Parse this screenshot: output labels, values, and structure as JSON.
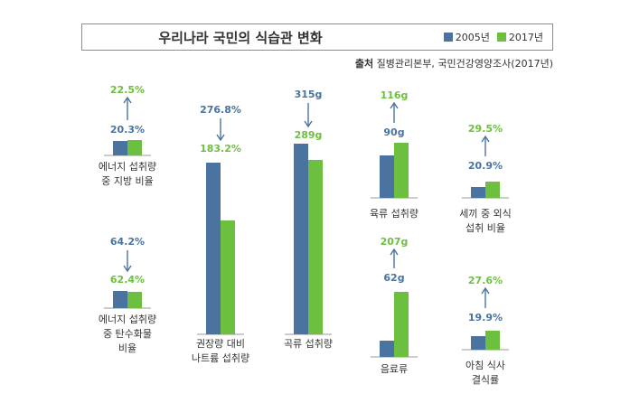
{
  "title": "우리나라 국민의 식습관 변화",
  "source_label": "출처",
  "source_text": "질병관리본부, 국민건강영양조사(2017년)",
  "colors": {
    "y2005": "#4a73a0",
    "y2017": "#6cbf3f"
  },
  "legend": [
    {
      "label": "2005년",
      "color": "#4a73a0"
    },
    {
      "label": "2017년",
      "color": "#6cbf3f"
    }
  ],
  "chart_data": {
    "type": "bar",
    "series": [
      {
        "name": "2005년"
      },
      {
        "name": "2017년"
      }
    ],
    "panels": [
      {
        "category": [
          "에너지 섭취량",
          "중 지방 비율"
        ],
        "values": [
          20.3,
          22.5
        ],
        "labels": [
          "20.3%",
          "22.5%"
        ],
        "trend": "up"
      },
      {
        "category": [
          "에너지 섭취량",
          "중 탄수화물",
          "비율"
        ],
        "values": [
          64.2,
          62.4
        ],
        "labels": [
          "64.2%",
          "62.4%"
        ],
        "trend": "down"
      },
      {
        "category": [
          "권장량 대비",
          "나트륨 섭취량"
        ],
        "values": [
          276.8,
          183.2
        ],
        "labels": [
          "276.8%",
          "183.2%"
        ],
        "trend": "down"
      },
      {
        "category": [
          "곡류 섭취량"
        ],
        "values": [
          315,
          289
        ],
        "labels": [
          "315g",
          "289g"
        ],
        "trend": "down"
      },
      {
        "category": [
          "육류 섭취량"
        ],
        "values": [
          90,
          116
        ],
        "labels": [
          "90g",
          "116g"
        ],
        "trend": "up"
      },
      {
        "category": [
          "세끼 중 외식",
          "섭취 비율"
        ],
        "values": [
          20.9,
          29.5
        ],
        "labels": [
          "20.9%",
          "29.5%"
        ],
        "trend": "up"
      },
      {
        "category": [
          "음료류"
        ],
        "values": [
          62,
          207
        ],
        "labels": [
          "62g",
          "207g"
        ],
        "trend": "up"
      },
      {
        "category": [
          "아침 식사",
          "결식률"
        ],
        "values": [
          19.9,
          27.6
        ],
        "labels": [
          "19.9%",
          "27.6%"
        ],
        "trend": "up"
      }
    ]
  }
}
